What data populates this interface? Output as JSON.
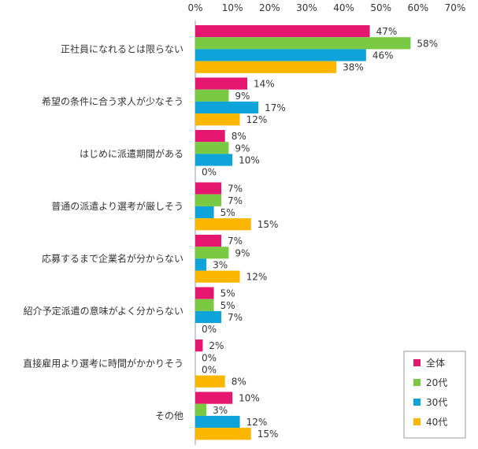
{
  "chart_data": {
    "type": "bar",
    "orientation": "horizontal",
    "xlim": [
      0,
      70
    ],
    "ticks": [
      0,
      10,
      20,
      30,
      40,
      50,
      60,
      70
    ],
    "tick_suffix": "%",
    "grid": false,
    "legend_position": "bottom-right",
    "categories": [
      "正社員になれるとは限らない",
      "希望の条件に合う求人が少なそう",
      "はじめに派遣期間がある",
      "普通の派遣より選考が厳しそう",
      "応募するまで企業名が分からない",
      "紹介予定派遣の意味がよく分からない",
      "直接雇用より選考に時間がかかりそう",
      "その他"
    ],
    "series": [
      {
        "name": "全体",
        "color": "#e4166f",
        "values": [
          47,
          14,
          8,
          7,
          7,
          5,
          2,
          10
        ]
      },
      {
        "name": "20代",
        "color": "#7ac943",
        "values": [
          58,
          9,
          9,
          7,
          9,
          5,
          0,
          3
        ]
      },
      {
        "name": "30代",
        "color": "#0ea3d9",
        "values": [
          46,
          17,
          10,
          5,
          3,
          7,
          0,
          12
        ]
      },
      {
        "name": "40代",
        "color": "#fbb600",
        "values": [
          38,
          12,
          0,
          15,
          12,
          0,
          8,
          15
        ]
      }
    ]
  }
}
